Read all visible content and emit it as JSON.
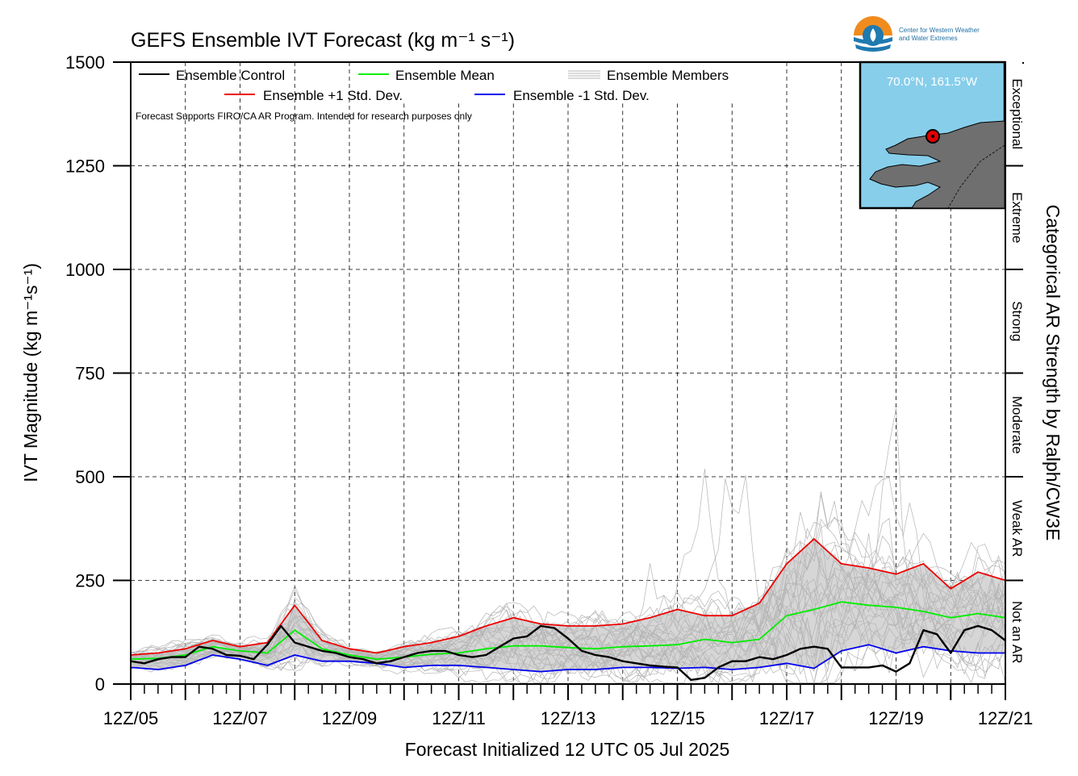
{
  "chart_data": {
    "type": "line",
    "title": "GEFS Ensemble IVT Forecast (kg m⁻¹ s⁻¹)",
    "xlabel": "Forecast Initialized 12 UTC 05 Jul 2025",
    "ylabel": "IVT Magnitude (kg m⁻¹s⁻¹)",
    "right_label": "Categorical AR Strength by Ralph/CW3E",
    "note": "Forecast Supports FIRO/CA AR Program. Intended for research purposes only",
    "ylim": [
      0,
      1500
    ],
    "xlim": [
      0,
      16
    ],
    "x_unit": "days since 12Z/05",
    "yticks": [
      0,
      250,
      500,
      750,
      1000,
      1250,
      1500
    ],
    "xticks": [
      "12Z/05",
      "12Z/07",
      "12Z/09",
      "12Z/11",
      "12Z/13",
      "12Z/15",
      "12Z/17",
      "12Z/19",
      "12Z/21"
    ],
    "grid": true,
    "legend_position": "top-left",
    "categories": [
      {
        "label": "Not an AR",
        "range": [
          0,
          250
        ]
      },
      {
        "label": "Weak AR",
        "range": [
          250,
          500
        ]
      },
      {
        "label": "Moderate",
        "range": [
          500,
          750
        ]
      },
      {
        "label": "Strong",
        "range": [
          750,
          1000
        ]
      },
      {
        "label": "Extreme",
        "range": [
          1000,
          1250
        ]
      },
      {
        "label": "Exceptional",
        "range": [
          1250,
          1500
        ]
      }
    ],
    "inset": {
      "location": "70.0°N, 161.5°W",
      "logo_text_line1": "Center for Western Weather",
      "logo_text_line2": "and Water Extremes"
    },
    "series": [
      {
        "name": "Ensemble Control",
        "color": "#000000",
        "x": [
          0,
          0.25,
          0.5,
          0.75,
          1,
          1.25,
          1.5,
          1.75,
          2,
          2.25,
          2.5,
          2.75,
          3,
          3.25,
          3.5,
          3.75,
          4,
          4.25,
          4.5,
          4.75,
          5,
          5.25,
          5.5,
          5.75,
          6,
          6.25,
          6.5,
          6.75,
          7,
          7.25,
          7.5,
          7.75,
          8,
          8.25,
          8.5,
          8.75,
          9,
          9.25,
          9.5,
          9.75,
          10,
          10.25,
          10.5,
          10.75,
          11,
          11.25,
          11.5,
          11.75,
          12,
          12.25,
          12.5,
          12.75,
          13,
          13.25,
          13.5,
          13.75,
          14,
          14.25,
          14.5,
          14.75,
          15,
          15.25,
          15.5,
          15.75,
          16
        ],
        "y": [
          55,
          50,
          60,
          65,
          65,
          90,
          85,
          70,
          68,
          60,
          95,
          140,
          100,
          90,
          80,
          75,
          65,
          60,
          50,
          55,
          65,
          75,
          80,
          80,
          70,
          65,
          70,
          90,
          110,
          115,
          140,
          135,
          110,
          80,
          70,
          65,
          55,
          50,
          45,
          42,
          40,
          10,
          15,
          40,
          55,
          55,
          65,
          60,
          70,
          85,
          90,
          85,
          40,
          40,
          40,
          45,
          30,
          50,
          130,
          120,
          75,
          130,
          140,
          130,
          105
        ]
      },
      {
        "name": "Ensemble Mean",
        "color": "#00ee00",
        "x": [
          0,
          0.5,
          1,
          1.5,
          2,
          2.5,
          3,
          3.5,
          4,
          4.5,
          5,
          5.5,
          6,
          6.5,
          7,
          7.5,
          8,
          8.5,
          9,
          9.5,
          10,
          10.5,
          11,
          11.5,
          12,
          12.5,
          13,
          13.5,
          14,
          14.5,
          15,
          15.5,
          16
        ],
        "y": [
          60,
          62,
          70,
          90,
          80,
          75,
          130,
          85,
          70,
          60,
          65,
          72,
          75,
          85,
          92,
          92,
          88,
          85,
          90,
          92,
          95,
          108,
          100,
          108,
          165,
          180,
          198,
          190,
          185,
          175,
          160,
          170,
          160
        ]
      },
      {
        "name": "Ensemble +1 Std. Dev.",
        "color": "#ee0000",
        "x": [
          0,
          0.5,
          1,
          1.5,
          2,
          2.5,
          3,
          3.5,
          4,
          4.5,
          5,
          5.5,
          6,
          6.5,
          7,
          7.5,
          8,
          8.5,
          9,
          9.5,
          10,
          10.5,
          11,
          11.5,
          12,
          12.5,
          13,
          13.5,
          14,
          14.5,
          15,
          15.5,
          16
        ],
        "y": [
          70,
          75,
          85,
          105,
          90,
          100,
          190,
          105,
          85,
          75,
          90,
          100,
          115,
          140,
          160,
          145,
          140,
          140,
          145,
          160,
          180,
          165,
          165,
          195,
          290,
          350,
          290,
          280,
          265,
          290,
          230,
          270,
          250
        ]
      },
      {
        "name": "Ensemble -1 Std. Dev.",
        "color": "#0000ee",
        "x": [
          0,
          0.5,
          1,
          1.5,
          2,
          2.5,
          3,
          3.5,
          4,
          4.5,
          5,
          5.5,
          6,
          6.5,
          7,
          7.5,
          8,
          8.5,
          9,
          9.5,
          10,
          10.5,
          11,
          11.5,
          12,
          12.5,
          13,
          13.5,
          14,
          14.5,
          15,
          15.5,
          16
        ],
        "y": [
          40,
          35,
          45,
          70,
          60,
          45,
          70,
          55,
          55,
          50,
          40,
          45,
          45,
          40,
          35,
          30,
          35,
          35,
          40,
          40,
          38,
          40,
          35,
          40,
          50,
          38,
          80,
          95,
          75,
          90,
          80,
          75,
          75
        ]
      }
    ],
    "members": [
      {
        "name": "Ensemble Members",
        "color": "#b4b4b4"
      }
    ]
  },
  "legend": [
    {
      "label": "Ensemble Control",
      "color": "#000000"
    },
    {
      "label": "Ensemble Mean",
      "color": "#00ee00"
    },
    {
      "label": "Ensemble Members",
      "color": "#b4b4b4"
    },
    {
      "label": "Ensemble +1 Std. Dev.",
      "color": "#ee0000"
    },
    {
      "label": "Ensemble -1 Std. Dev.",
      "color": "#0000ee"
    }
  ]
}
